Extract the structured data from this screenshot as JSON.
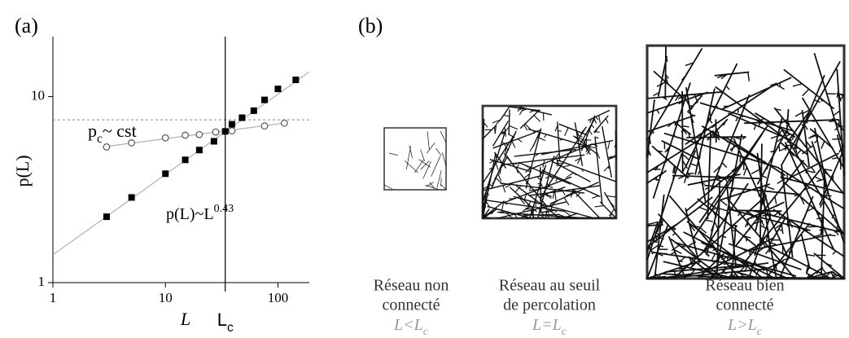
{
  "panel_labels": [
    "(a)",
    "(b)"
  ],
  "chart_data": {
    "type": "scatter",
    "log_x": true,
    "log_y": true,
    "xlabel": "L",
    "ylabel": "p(L)",
    "xlim": [
      1,
      190
    ],
    "ylim": [
      1,
      21
    ],
    "xticks": [
      1,
      10,
      100
    ],
    "yticks": [
      1,
      10
    ],
    "series": [
      {
        "marker": "square",
        "color": "#000000",
        "x": [
          3,
          5,
          10,
          15,
          20,
          27,
          34,
          39,
          48,
          61,
          76,
          100,
          144
        ],
        "values": [
          2.26,
          2.87,
          3.85,
          4.57,
          5.16,
          5.75,
          6.5,
          7.1,
          7.7,
          8.4,
          9.6,
          11.0,
          12.3
        ]
      },
      {
        "marker": "circle",
        "color": "#555555",
        "x": [
          3,
          5,
          10,
          15,
          20,
          28,
          39,
          76,
          114
        ],
        "values": [
          5.36,
          5.64,
          6.0,
          6.2,
          6.25,
          6.45,
          6.55,
          6.95,
          7.2
        ]
      },
      {
        "marker": "line",
        "color": "#b0b0b0",
        "x": [
          1,
          190
        ],
        "values": [
          1.41,
          13.6
        ]
      },
      {
        "marker": "line",
        "color": "#b0b0b0",
        "x": [
          3,
          114
        ],
        "values": [
          5.4,
          7.2
        ]
      }
    ],
    "hline": 7.5,
    "vline": 34,
    "vline_label": {
      "base": "L",
      "sub": "c"
    },
    "pc_label": {
      "base": "p",
      "sub": "c",
      "rest": "~ cst"
    },
    "fit_label": {
      "base": "p(L)~L",
      "sup": "0.43"
    }
  },
  "networks": [
    {
      "caption": [
        "Réseau non",
        "connecté"
      ],
      "condition": {
        "base": "L<L",
        "sub": "c"
      }
    },
    {
      "caption": [
        "Réseau au seuil",
        "de percolation"
      ],
      "condition": {
        "base": "L=L",
        "sub": "c"
      }
    },
    {
      "caption": [
        "Réseau bien",
        "connecté"
      ],
      "condition": {
        "base": "L>L",
        "sub": "c"
      }
    }
  ]
}
